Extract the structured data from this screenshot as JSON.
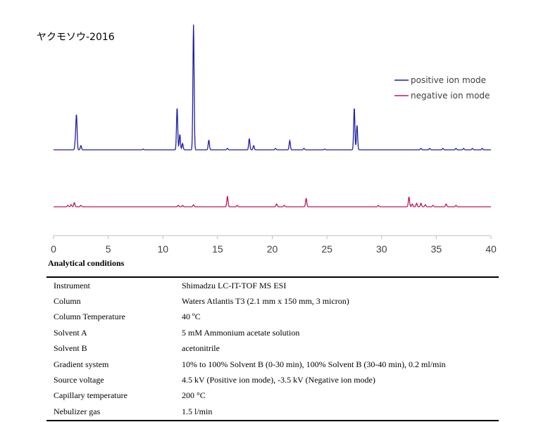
{
  "figure": {
    "sample_title": "ヤクモソウ-2016"
  },
  "chart_data": {
    "type": "line",
    "x_axis": {
      "min": 0,
      "max": 40,
      "ticks": [
        0,
        5,
        10,
        15,
        20,
        25,
        30,
        35,
        40
      ]
    },
    "y_axis": {
      "shown": false
    },
    "grid": false,
    "legend_position": "top-right",
    "series": [
      {
        "name": "positive ion mode",
        "color": "#1f1fa8",
        "baseline": 0,
        "peaks": [
          {
            "x": 2.1,
            "y": 48
          },
          {
            "x": 2.0,
            "y": 12
          },
          {
            "x": 2.5,
            "y": 6
          },
          {
            "x": 8.2,
            "y": 1
          },
          {
            "x": 11.3,
            "y": 60
          },
          {
            "x": 11.55,
            "y": 22
          },
          {
            "x": 11.8,
            "y": 9
          },
          {
            "x": 12.8,
            "y": 178
          },
          {
            "x": 14.2,
            "y": 14
          },
          {
            "x": 15.9,
            "y": 2
          },
          {
            "x": 17.9,
            "y": 16
          },
          {
            "x": 18.3,
            "y": 6
          },
          {
            "x": 20.3,
            "y": 2
          },
          {
            "x": 21.6,
            "y": 13
          },
          {
            "x": 22.9,
            "y": 2
          },
          {
            "x": 24.8,
            "y": 1
          },
          {
            "x": 27.5,
            "y": 60
          },
          {
            "x": 27.75,
            "y": 35
          },
          {
            "x": 33.6,
            "y": 2
          },
          {
            "x": 34.4,
            "y": 2
          },
          {
            "x": 35.6,
            "y": 2
          },
          {
            "x": 36.8,
            "y": 2
          },
          {
            "x": 37.5,
            "y": 2
          },
          {
            "x": 38.3,
            "y": 2
          },
          {
            "x": 39.2,
            "y": 2
          }
        ]
      },
      {
        "name": "negative ion mode",
        "color": "#c0185a",
        "baseline": 0,
        "peaks": [
          {
            "x": 1.3,
            "y": 2
          },
          {
            "x": 1.6,
            "y": 3
          },
          {
            "x": 1.9,
            "y": 6
          },
          {
            "x": 2.5,
            "y": 2
          },
          {
            "x": 11.4,
            "y": 2
          },
          {
            "x": 11.8,
            "y": 2
          },
          {
            "x": 12.8,
            "y": 3
          },
          {
            "x": 15.9,
            "y": 15
          },
          {
            "x": 16.8,
            "y": 2
          },
          {
            "x": 20.4,
            "y": 4
          },
          {
            "x": 21.1,
            "y": 2
          },
          {
            "x": 23.1,
            "y": 12
          },
          {
            "x": 29.7,
            "y": 2
          },
          {
            "x": 32.5,
            "y": 14
          },
          {
            "x": 32.8,
            "y": 4
          },
          {
            "x": 33.2,
            "y": 5
          },
          {
            "x": 33.6,
            "y": 5
          },
          {
            "x": 34.0,
            "y": 3
          },
          {
            "x": 34.7,
            "y": 2
          },
          {
            "x": 35.9,
            "y": 4
          },
          {
            "x": 36.8,
            "y": 2
          }
        ]
      }
    ]
  },
  "analytical_conditions": {
    "title": "Analytical conditions",
    "rows": [
      {
        "parameter": "Instrument",
        "value": "Shimadzu LC-IT-TOF MS ESI"
      },
      {
        "parameter": "Column",
        "value": "Waters Atlantis T3 (2.1 mm x 150 mm, 3 micron)"
      },
      {
        "parameter": "Column Temperature",
        "value": "40 ºC"
      },
      {
        "parameter": "Solvent A",
        "value": "5 mM Ammonium acetate solution"
      },
      {
        "parameter": "Solvent B",
        "value": "acetonitrile"
      },
      {
        "parameter": "Gradient system",
        "value": "10% to 100% Solvent B (0-30 min), 100% Solvent B (30-40 min), 0.2 ml/min"
      },
      {
        "parameter": "Source voltage",
        "value": "4.5 kV (Positive ion mode), -3.5 kV (Negative ion mode)"
      },
      {
        "parameter": "Capillary temperature",
        "value": "200 °C"
      },
      {
        "parameter": "Nebulizer gas",
        "value": "1.5 l/min"
      }
    ]
  }
}
